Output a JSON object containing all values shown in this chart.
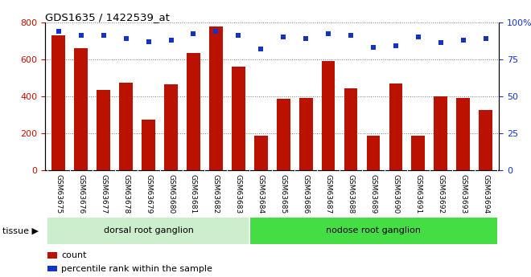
{
  "title": "GDS1635 / 1422539_at",
  "samples": [
    "GSM63675",
    "GSM63676",
    "GSM63677",
    "GSM63678",
    "GSM63679",
    "GSM63680",
    "GSM63681",
    "GSM63682",
    "GSM63683",
    "GSM63684",
    "GSM63685",
    "GSM63686",
    "GSM63687",
    "GSM63688",
    "GSM63689",
    "GSM63690",
    "GSM63691",
    "GSM63692",
    "GSM63693",
    "GSM63694"
  ],
  "counts": [
    730,
    660,
    435,
    475,
    275,
    465,
    635,
    775,
    560,
    185,
    385,
    390,
    590,
    445,
    185,
    470,
    185,
    400,
    390,
    325
  ],
  "percentiles": [
    94,
    91,
    91,
    89,
    87,
    88,
    92,
    94,
    91,
    82,
    90,
    89,
    92,
    91,
    83,
    84,
    90,
    86,
    88,
    89
  ],
  "ylim_left": [
    0,
    800
  ],
  "ylim_right": [
    0,
    100
  ],
  "yticks_left": [
    0,
    200,
    400,
    600,
    800
  ],
  "yticks_right": [
    0,
    25,
    50,
    75,
    100
  ],
  "bar_color": "#bb1100",
  "dot_color": "#1133cc",
  "bg_color": "#ffffff",
  "tissue_groups": [
    {
      "label": "dorsal root ganglion",
      "start": 0,
      "end": 9,
      "color": "#cceecc"
    },
    {
      "label": "nodose root ganglion",
      "start": 9,
      "end": 20,
      "color": "#44dd44"
    }
  ],
  "tissue_label": "tissue",
  "legend_items": [
    {
      "label": "count",
      "color": "#bb1100"
    },
    {
      "label": "percentile rank within the sample",
      "color": "#1133cc"
    }
  ],
  "dorsal_count": 9,
  "total_count": 20
}
